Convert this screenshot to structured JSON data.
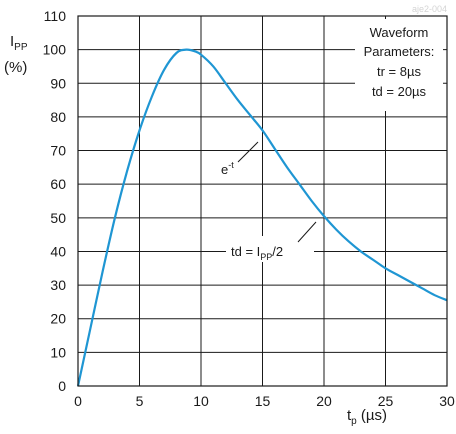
{
  "chart_data": {
    "type": "line",
    "title": "",
    "xlabel": {
      "main": "t",
      "sub": "p",
      "unit": " (µs)"
    },
    "ylabel": {
      "main": "I",
      "sub": "PP",
      "unit": "(%)"
    },
    "xlim": [
      0,
      30
    ],
    "ylim": [
      0,
      110
    ],
    "xticks": [
      0,
      5,
      10,
      15,
      20,
      25,
      30
    ],
    "yticks": [
      0,
      10,
      20,
      30,
      40,
      50,
      60,
      70,
      80,
      90,
      100,
      110
    ],
    "grid": true,
    "series_color": "#1f96d3",
    "series": [
      {
        "name": "",
        "x": [
          0,
          1,
          2,
          3,
          4,
          5,
          6,
          7,
          8,
          8.8,
          9.5,
          10,
          11,
          12,
          13,
          14,
          15,
          16,
          17,
          18,
          19,
          20,
          21,
          22,
          23,
          24,
          25,
          26,
          27,
          28,
          29,
          30
        ],
        "y": [
          0,
          17,
          34,
          50,
          64,
          76,
          86,
          94,
          99,
          100,
          99.5,
          98.5,
          95,
          90,
          85,
          80.5,
          76,
          70.5,
          65,
          60,
          55,
          50.5,
          46.5,
          43,
          40,
          37.5,
          35,
          33,
          31,
          29,
          27,
          25.5
        ]
      }
    ],
    "legend": {
      "title_lines": [
        "Waveform",
        "Parameters:"
      ],
      "params": [
        "tr = 8µs",
        "td = 20µs"
      ]
    },
    "annotations": [
      {
        "text": "e",
        "sup": "-t",
        "at_x": 15,
        "at_y": 76
      },
      {
        "text": "td = I",
        "sub": "PP",
        "tail": "/2",
        "at_x": 20,
        "at_y": 50
      }
    ],
    "watermark": "aje2-004"
  }
}
